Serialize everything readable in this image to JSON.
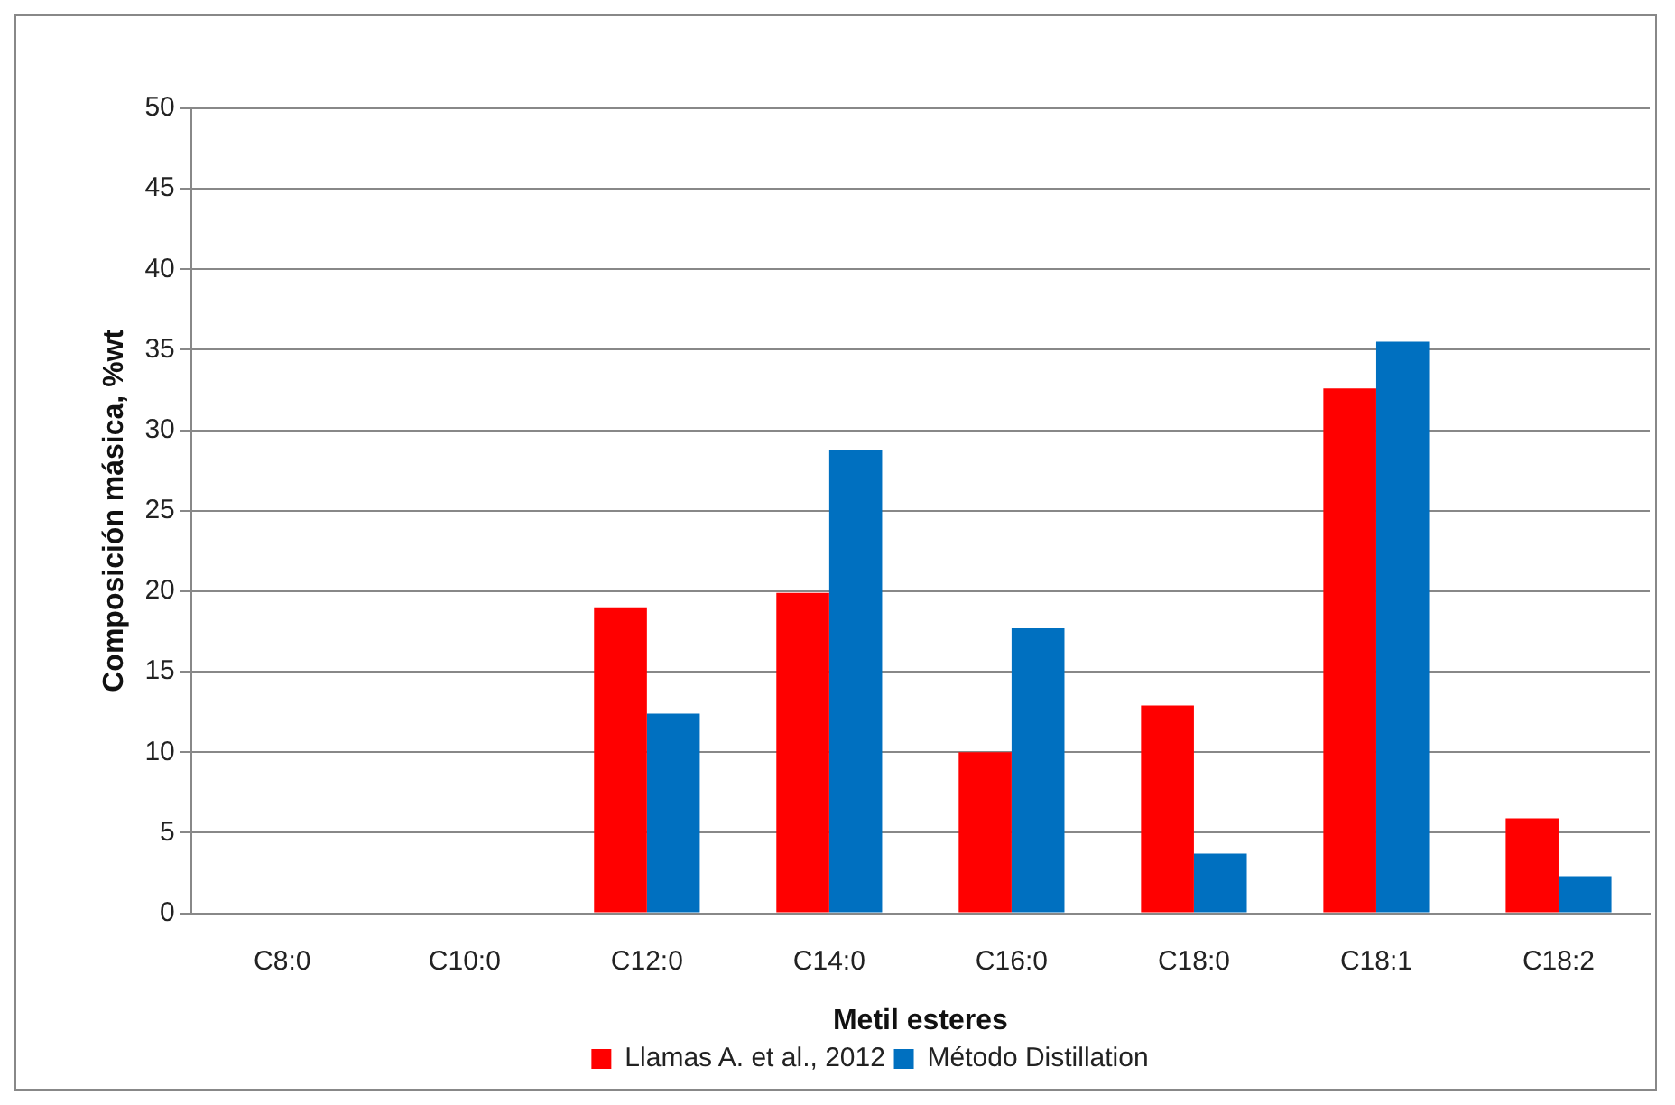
{
  "chart_data": {
    "type": "bar",
    "xlabel": "Metil esteres",
    "ylabel": "Composición másica, %wt",
    "categories": [
      "C8:0",
      "C10:0",
      "C12:0",
      "C14:0",
      "C16:0",
      "C18:0",
      "C18:1",
      "C18:2"
    ],
    "series": [
      {
        "name": "Llamas A. et al., 2012",
        "color": "#ff0000",
        "values": [
          0,
          0,
          19.0,
          19.9,
          10.0,
          12.9,
          32.6,
          5.9
        ]
      },
      {
        "name": "Método Distillation",
        "color": "#0070c0",
        "values": [
          0,
          0,
          12.4,
          28.8,
          17.7,
          3.7,
          35.5,
          2.3
        ]
      }
    ],
    "ylim": [
      0,
      50
    ],
    "yticks": [
      0,
      5,
      10,
      15,
      20,
      25,
      30,
      35,
      40,
      45,
      50
    ],
    "grid": "y",
    "legend": "bottom"
  }
}
